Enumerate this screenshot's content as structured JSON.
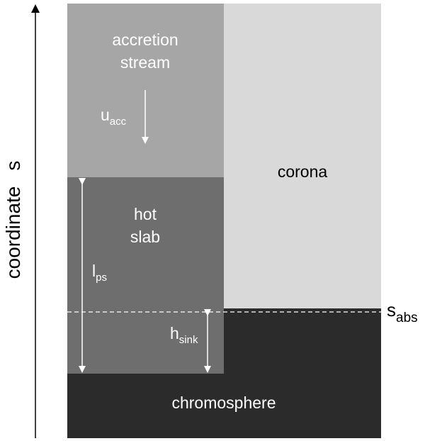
{
  "axis": {
    "label": "coordinate",
    "symbol": "s"
  },
  "regions": {
    "accretion_stream": {
      "lines": [
        "accretion",
        "stream"
      ]
    },
    "hot_slab": {
      "lines": [
        "hot",
        "slab"
      ]
    },
    "corona": {
      "label": "corona"
    },
    "chromosphere": {
      "label": "chromosphere"
    }
  },
  "symbols": {
    "u_acc": {
      "main": "u",
      "sub": "acc"
    },
    "l_ps": {
      "main": "l",
      "sub": "ps"
    },
    "h_sink": {
      "main": "h",
      "sub": "sink"
    },
    "s_abs": {
      "main": "s",
      "sub": "abs"
    }
  }
}
